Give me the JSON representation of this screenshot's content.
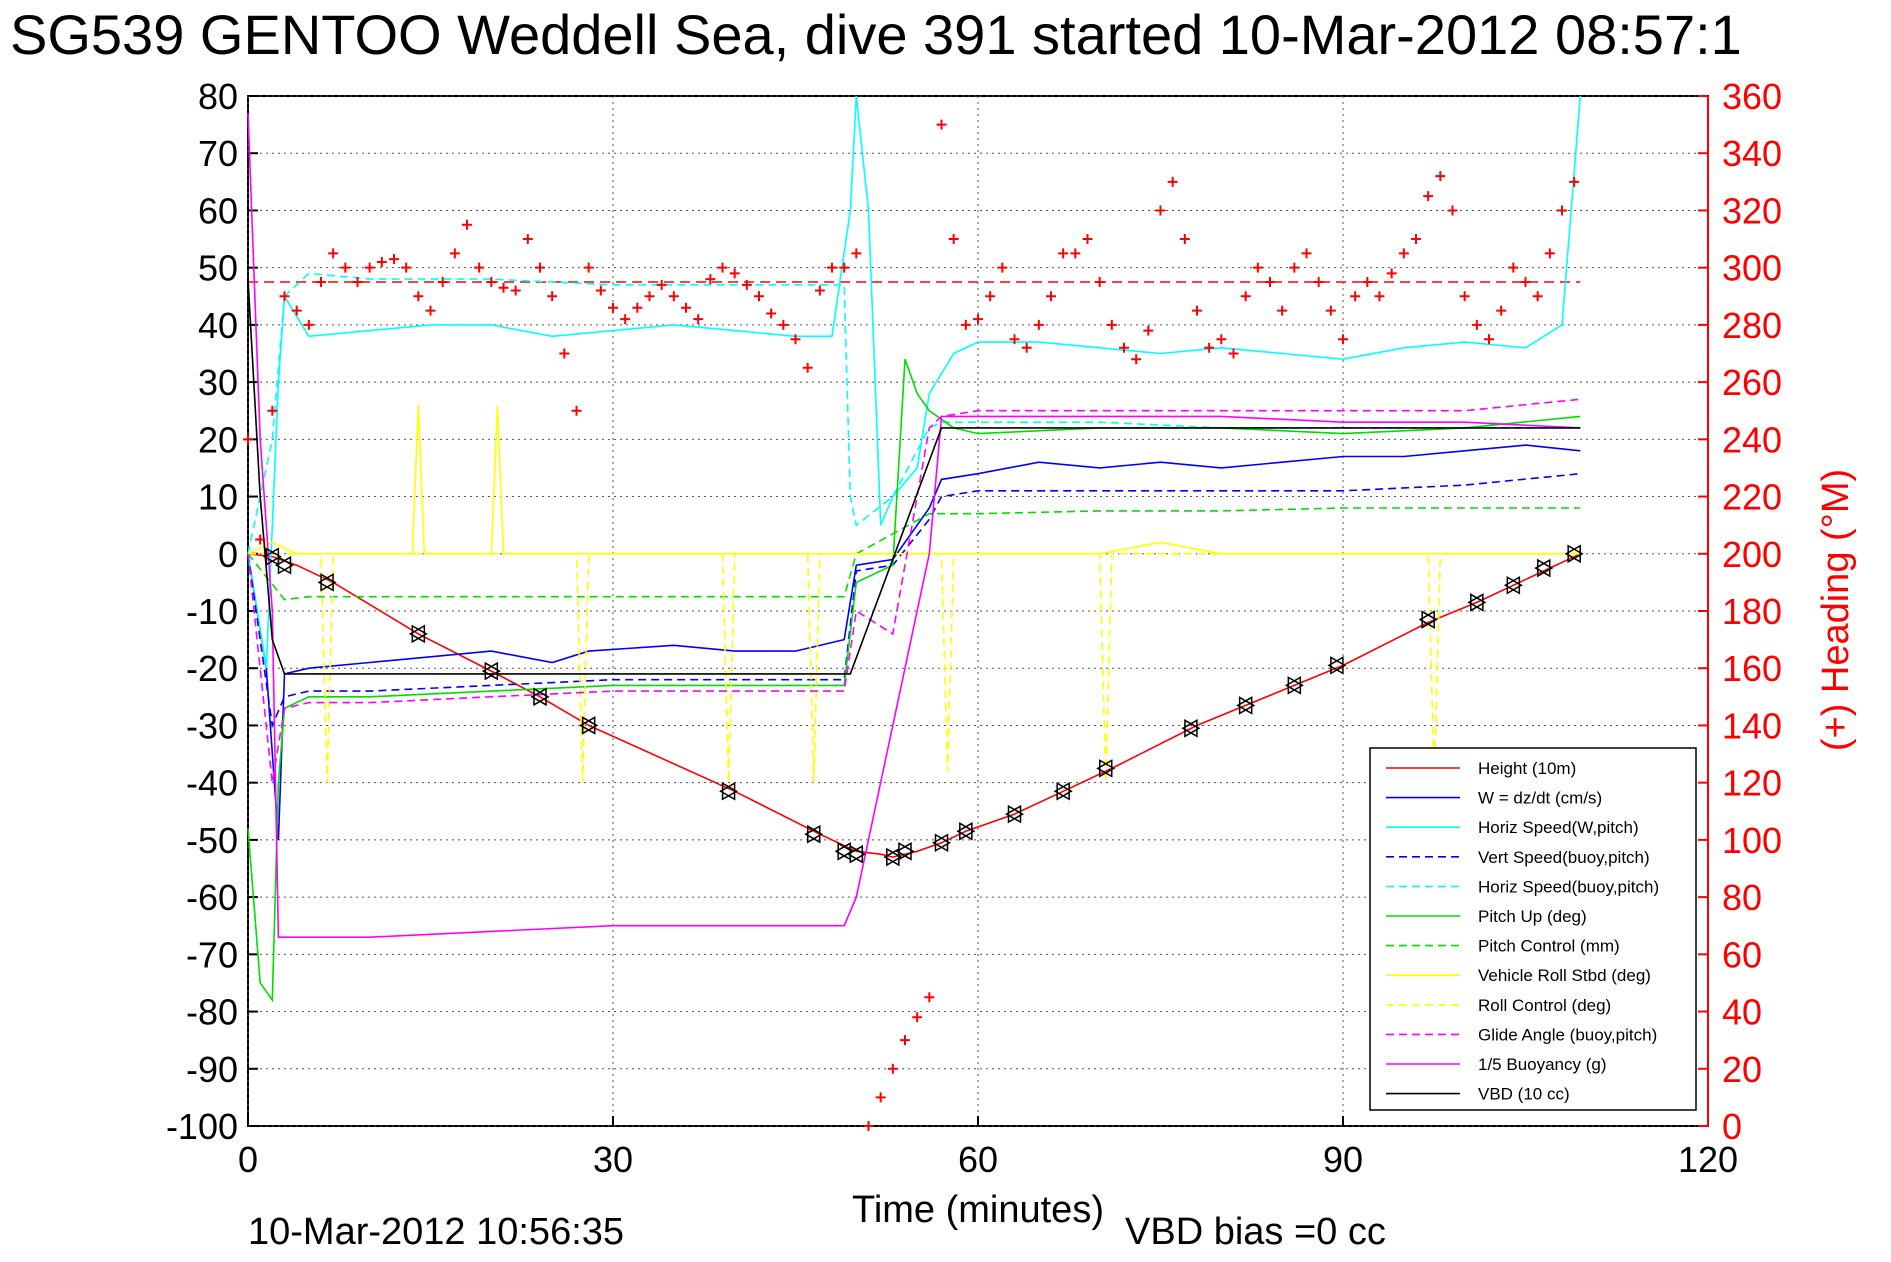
{
  "chart_data": {
    "type": "line",
    "title": "SG539 GENTOO Weddell Sea, dive 391 started 10-Mar-2012 08:57:1",
    "xlabel": "Time (minutes)",
    "y2label": "(+) Heading (°M)",
    "footer_left": "10-Mar-2012 10:56:35",
    "footer_right": "VBD bias =0 cc",
    "xlim": [
      0,
      120
    ],
    "ylim": [
      -100,
      80
    ],
    "y2lim": [
      0,
      360
    ],
    "xticks": [
      0,
      30,
      60,
      90,
      120
    ],
    "yticks": [
      80,
      70,
      60,
      50,
      40,
      30,
      20,
      10,
      0,
      -10,
      -20,
      -30,
      -40,
      -50,
      -60,
      -70,
      -80,
      -90,
      -100
    ],
    "y2ticks": [
      360,
      340,
      320,
      300,
      280,
      260,
      240,
      220,
      200,
      180,
      160,
      140,
      120,
      100,
      80,
      60,
      40,
      20,
      0
    ],
    "grid": true,
    "legend_position": "bottom-right",
    "series": [
      {
        "name": "Height (10m)",
        "color": "#ff0000",
        "style": "solid",
        "x": [
          0,
          2,
          4,
          7,
          14,
          20,
          24,
          28,
          40,
          47,
          50,
          52,
          53,
          55,
          57,
          59,
          63,
          67,
          71,
          78,
          82,
          86,
          90,
          97,
          101,
          104,
          107,
          109.5
        ],
        "y": [
          0,
          -0.5,
          -2,
          -5,
          -14,
          -20.5,
          -25,
          -30,
          -41.5,
          -49,
          -52,
          -52.5,
          -53,
          -52,
          -50.5,
          -48.5,
          -45.5,
          -41.5,
          -37.5,
          -30,
          -26.5,
          -23,
          -19.5,
          -12,
          -8.5,
          -5.5,
          -2.5,
          0
        ]
      },
      {
        "name": "W = dz/dt (cm/s)",
        "color": "#0000ff",
        "style": "solid",
        "x": [
          0,
          1.5,
          2.5,
          3,
          5,
          10,
          15,
          20,
          25,
          28,
          35,
          40,
          45,
          49,
          50,
          53,
          56,
          57,
          60,
          65,
          70,
          75,
          80,
          85,
          90,
          95,
          100,
          105,
          109.5
        ],
        "y": [
          0,
          -20,
          -50,
          -21,
          -20,
          -19,
          -18,
          -17,
          -19,
          -17,
          -16,
          -17,
          -17,
          -15,
          -2,
          -1,
          8,
          13,
          14,
          16,
          15,
          16,
          15,
          16,
          17,
          17,
          18,
          19,
          18
        ]
      },
      {
        "name": "Horiz Speed(W,pitch)",
        "color": "#00ffff",
        "style": "solid",
        "x": [
          0,
          1.5,
          2.5,
          3,
          5,
          10,
          15,
          20,
          25,
          30,
          35,
          40,
          45,
          48,
          49.5,
          50,
          51,
          52,
          53,
          55,
          56,
          58,
          60,
          65,
          70,
          75,
          80,
          85,
          90,
          95,
          100,
          105,
          108,
          109.5
        ],
        "y": [
          0,
          -20,
          30,
          45,
          38,
          39,
          40,
          40,
          38,
          39,
          40,
          39,
          38,
          38,
          60,
          80,
          60,
          5,
          10,
          15,
          28,
          35,
          37,
          37,
          36,
          35,
          36,
          35,
          34,
          36,
          37,
          36,
          40,
          80
        ]
      },
      {
        "name": "Vert Speed(buoy,pitch)",
        "color": "#0000ff",
        "style": "dashed",
        "x": [
          0,
          2,
          3,
          5,
          10,
          20,
          30,
          40,
          49,
          50,
          53,
          56,
          57,
          60,
          70,
          80,
          90,
          100,
          109.5
        ],
        "y": [
          0,
          -30,
          -25,
          -24,
          -24,
          -23,
          -22,
          -22,
          -22,
          -3,
          -2,
          6,
          10,
          11,
          11,
          11,
          11,
          12,
          14
        ]
      },
      {
        "name": "Horiz Speed(buoy,pitch)",
        "color": "#00ffff",
        "style": "dashed",
        "x": [
          0,
          2,
          3,
          5,
          10,
          20,
          30,
          40,
          49,
          49.5,
          50,
          53,
          56,
          57,
          60,
          70,
          80,
          90,
          100,
          109.5
        ],
        "y": [
          0,
          20,
          45,
          49,
          48,
          48,
          47,
          47,
          47,
          10,
          5,
          10,
          22,
          23,
          23,
          23,
          22,
          22,
          22,
          22
        ]
      },
      {
        "name": "Pitch Up (deg)",
        "color": "#00dd00",
        "style": "solid",
        "x": [
          0,
          1,
          2,
          2.5,
          3,
          5,
          10,
          20,
          30,
          40,
          49,
          50,
          53,
          54,
          55,
          56,
          58,
          60,
          70,
          80,
          90,
          100,
          109.5
        ],
        "y": [
          -48,
          -75,
          -78,
          -40,
          -27,
          -25,
          -25,
          -24,
          -23,
          -23,
          -23,
          -5,
          -2,
          34,
          28,
          25,
          22,
          21,
          22,
          22,
          21,
          22,
          24
        ]
      },
      {
        "name": "Pitch Control (mm)",
        "color": "#00dd00",
        "style": "dashed",
        "x": [
          0,
          3,
          5,
          10,
          20,
          30,
          40,
          49,
          50,
          56,
          57,
          60,
          70,
          80,
          90,
          100,
          109.5
        ],
        "y": [
          0,
          -8,
          -7.5,
          -7.5,
          -7.5,
          -7.5,
          -7.5,
          -7.5,
          0,
          7,
          7,
          7,
          7.5,
          7.5,
          8,
          8,
          8
        ]
      },
      {
        "name": "Vehicle Roll Stbd (deg)",
        "color": "#ffff00",
        "style": "solid",
        "x": [
          0,
          2,
          4,
          10,
          13.5,
          14,
          14.5,
          20,
          20.5,
          21,
          25,
          30,
          40,
          50,
          60,
          70,
          75,
          80,
          90,
          100,
          108,
          109.5
        ],
        "y": [
          0,
          2,
          0,
          0,
          0,
          26,
          0,
          0,
          26,
          0,
          0,
          0,
          0,
          0,
          0,
          0,
          2,
          0,
          0,
          0,
          0,
          0
        ]
      },
      {
        "name": "Roll Control (deg)",
        "color": "#ffff00",
        "style": "dashed",
        "x": [
          0,
          6,
          6.5,
          7,
          27,
          27.5,
          28,
          39,
          39.5,
          40,
          46,
          46.5,
          47,
          57,
          57.5,
          58,
          70,
          70.5,
          71,
          97,
          97.5,
          98,
          109.5
        ],
        "y": [
          0,
          0,
          -40,
          0,
          0,
          -40,
          0,
          0,
          -40,
          0,
          0,
          -40,
          0,
          0,
          -38,
          0,
          0,
          -40,
          0,
          0,
          -40,
          0,
          0
        ]
      },
      {
        "name": "Glide Angle (buoy,pitch)",
        "color": "#ff00ff",
        "style": "dashed",
        "x": [
          0,
          2,
          3,
          5,
          10,
          20,
          30,
          40,
          49,
          50,
          53,
          56,
          57,
          60,
          70,
          80,
          90,
          100,
          109.5
        ],
        "y": [
          0,
          -40,
          -27,
          -26,
          -26,
          -25,
          -24,
          -24,
          -24,
          -10,
          -14,
          22,
          24,
          25,
          25,
          25,
          25,
          25,
          27
        ]
      },
      {
        "name": "1/5 Buoyancy (g)",
        "color": "#ff00ff",
        "style": "solid",
        "x": [
          0,
          1,
          2,
          2.5,
          3,
          10,
          20,
          30,
          40,
          49,
          50,
          53,
          56,
          57,
          60,
          70,
          80,
          90,
          100,
          109.5
        ],
        "y": [
          77,
          20,
          -10,
          -67,
          -67,
          -67,
          -66,
          -65,
          -65,
          -65,
          -60,
          -30,
          0,
          24,
          24,
          24,
          24,
          23,
          23,
          22
        ]
      },
      {
        "name": "VBD (10 cc)",
        "color": "#000000",
        "style": "solid",
        "x": [
          0,
          1,
          2,
          3,
          10,
          30,
          49,
          49.5,
          57,
          60,
          80,
          100,
          109.5
        ],
        "y": [
          48,
          10,
          -15,
          -21,
          -21,
          -21,
          -21,
          -21,
          22,
          22,
          22,
          22,
          22
        ]
      }
    ],
    "heading_series": {
      "name": "Heading",
      "marker": "+",
      "color": "#ff0000",
      "reference_value": 295,
      "x": [
        0,
        1,
        2,
        3,
        4,
        5,
        6,
        7,
        8,
        9,
        10,
        11,
        12,
        13,
        14,
        15,
        16,
        17,
        18,
        19,
        20,
        21,
        22,
        23,
        24,
        25,
        26,
        27,
        28,
        29,
        30,
        31,
        32,
        33,
        34,
        35,
        36,
        37,
        38,
        39,
        40,
        41,
        42,
        43,
        44,
        45,
        46,
        47,
        48,
        49,
        50,
        51,
        52,
        53,
        54,
        55,
        56,
        57,
        58,
        59,
        60,
        61,
        62,
        63,
        64,
        65,
        66,
        67,
        68,
        69,
        70,
        71,
        72,
        73,
        74,
        75,
        76,
        77,
        78,
        79,
        80,
        81,
        82,
        83,
        84,
        85,
        86,
        87,
        88,
        89,
        90,
        91,
        92,
        93,
        94,
        95,
        96,
        97,
        98,
        99,
        100,
        101,
        102,
        103,
        104,
        105,
        106,
        107,
        108,
        109
      ],
      "y": [
        240,
        205,
        250,
        290,
        285,
        280,
        295,
        305,
        300,
        295,
        300,
        302,
        303,
        300,
        290,
        285,
        295,
        305,
        315,
        300,
        295,
        293,
        292,
        310,
        300,
        290,
        270,
        250,
        300,
        292,
        286,
        282,
        286,
        290,
        294,
        290,
        286,
        282,
        296,
        300,
        298,
        294,
        290,
        284,
        280,
        275,
        265,
        292,
        300,
        300,
        305,
        0,
        10,
        20,
        30,
        38,
        45,
        350,
        310,
        280,
        282,
        290,
        300,
        275,
        272,
        280,
        290,
        305,
        305,
        310,
        295,
        280,
        272,
        268,
        278,
        320,
        330,
        310,
        285,
        272,
        275,
        270,
        290,
        300,
        295,
        285,
        300,
        305,
        295,
        285,
        275,
        290,
        295,
        290,
        298,
        305,
        310,
        325,
        332,
        320,
        290,
        280,
        275,
        285,
        300,
        295,
        290,
        305,
        320,
        330
      ]
    },
    "markers": {
      "type": "triangle",
      "color": "#000000",
      "x": [
        2,
        3,
        6.5,
        14,
        20,
        24,
        28,
        39.5,
        46.5,
        49,
        50,
        53,
        54,
        57,
        59,
        63,
        67,
        70.5,
        77.5,
        82,
        86,
        89.5,
        97,
        101,
        104,
        106.5,
        109
      ],
      "y": [
        -0.5,
        -2,
        -5,
        -14,
        -20.5,
        -25,
        -30,
        -41.5,
        -49,
        -52,
        -52.5,
        -53,
        -52,
        -50.5,
        -48.5,
        -45.5,
        -41.5,
        -37.5,
        -30.5,
        -26.5,
        -23,
        -19.5,
        -11.5,
        -8.5,
        -5.5,
        -2.5,
        0
      ]
    }
  }
}
